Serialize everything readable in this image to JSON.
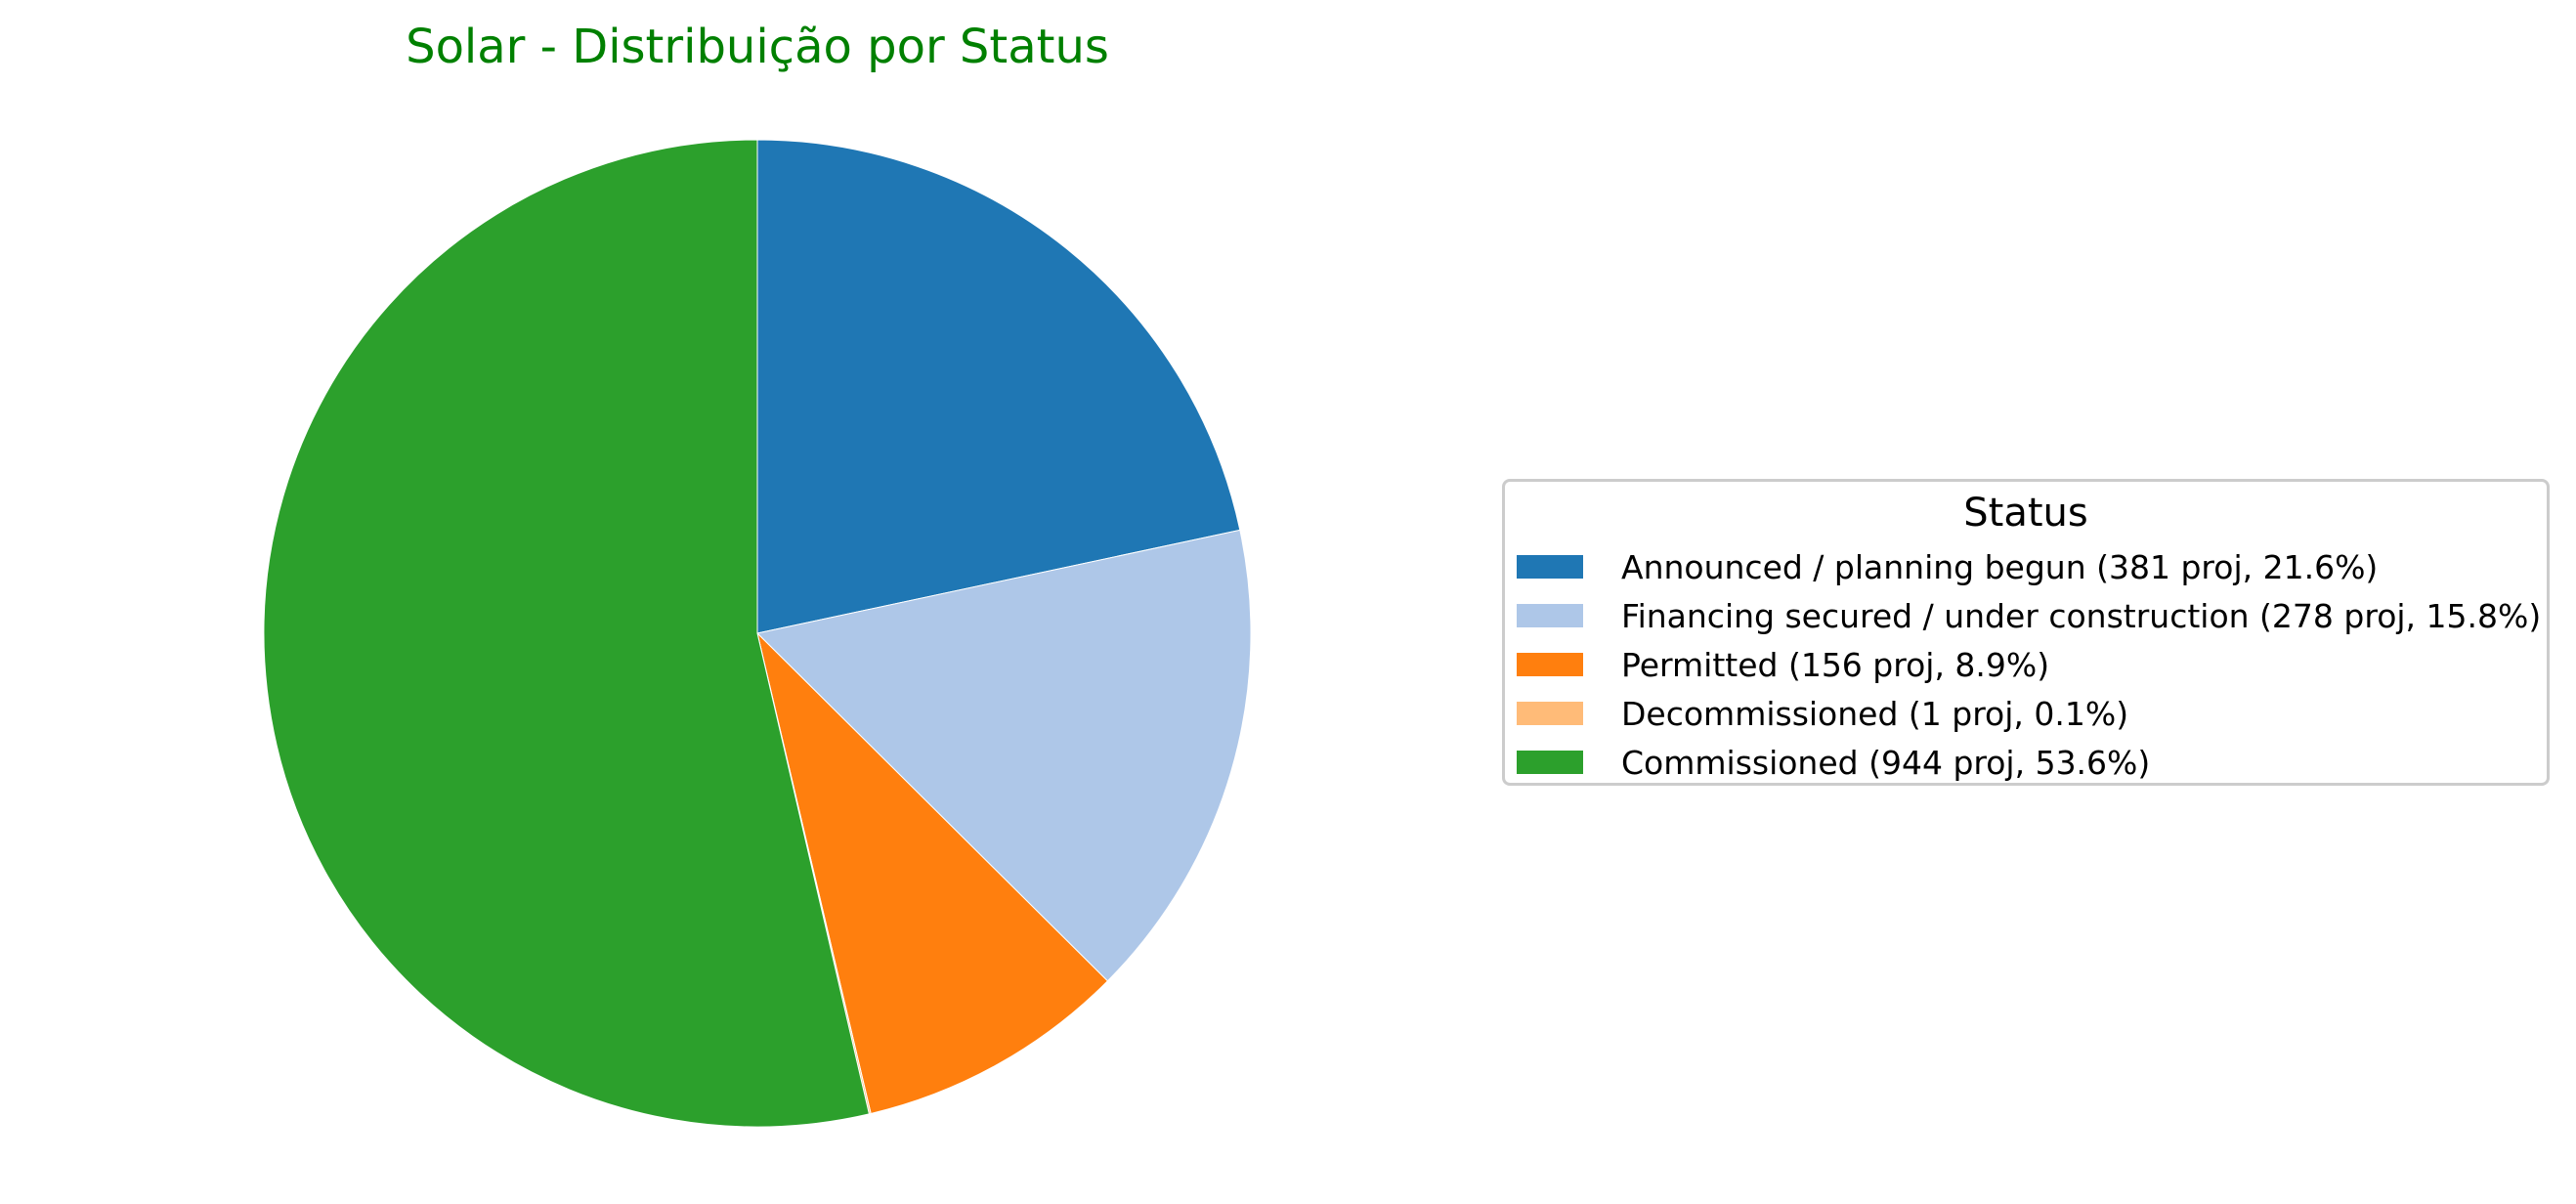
{
  "chart_data": {
    "type": "pie",
    "title": "Solar - Distribuição por Status",
    "title_color": "#008000",
    "start_angle": "90 (top)",
    "direction": "clockwise",
    "legend_title": "Status",
    "legend_placement": "right",
    "slices": [
      {
        "label": "Announced / planning begun",
        "count": 381,
        "percent": 21.6,
        "legend_text": "Announced / planning begun (381 proj, 21.6%)",
        "color": "#1f77b4"
      },
      {
        "label": "Financing secured / under construction",
        "count": 278,
        "percent": 15.8,
        "legend_text": "Financing secured / under construction (278 proj, 15.8%)",
        "color": "#aec7e8"
      },
      {
        "label": "Permitted",
        "count": 156,
        "percent": 8.9,
        "legend_text": "Permitted (156 proj, 8.9%)",
        "color": "#ff7f0e"
      },
      {
        "label": "Decommissioned",
        "count": 1,
        "percent": 0.1,
        "legend_text": "Decommissioned (1 proj, 0.1%)",
        "color": "#ffbb78"
      },
      {
        "label": "Commissioned",
        "count": 944,
        "percent": 53.6,
        "legend_text": "Commissioned (944 proj, 53.6%)",
        "color": "#2ca02c"
      }
    ]
  }
}
